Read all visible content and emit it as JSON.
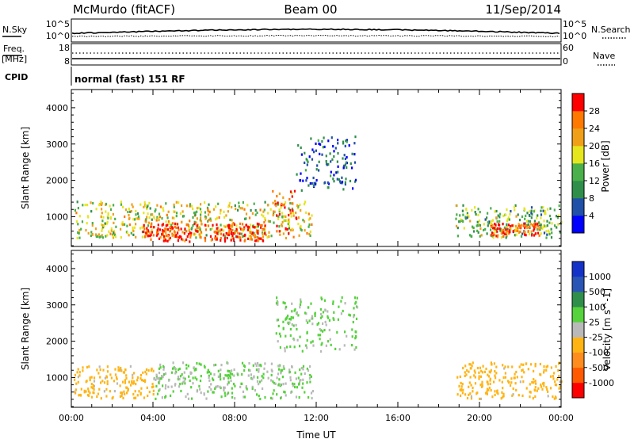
{
  "header": {
    "station": "McMurdo (fitACF)",
    "beam": "Beam 00",
    "date": "11/Sep/2014"
  },
  "left_labels": {
    "nsky": "N.Sky",
    "freq": "Freq.",
    "freq_unit": "[MHz]",
    "cpid": "CPID"
  },
  "right_labels": {
    "nsearch": "N.Search",
    "nave": "Nave"
  },
  "strip_ticks": {
    "noise_left": [
      "10^5",
      "10^0"
    ],
    "noise_right": [
      "10^5",
      "10^0"
    ],
    "freq_left": [
      "18",
      "8"
    ],
    "nave_right": [
      "60",
      "0"
    ]
  },
  "cpid_text": "normal (fast) 151 RF",
  "colors": {
    "power": [
      "#0000ff",
      "#2050a8",
      "#2f8f4a",
      "#4ab04a",
      "#e6e61e",
      "#f0a018",
      "#ff7800",
      "#ff0000"
    ],
    "velocity": [
      "#ff0000",
      "#ff5a00",
      "#ff8c1e",
      "#ffb414",
      "#b9b9b9",
      "#55d23c",
      "#2f8f4a",
      "#2a55b4",
      "#1432c8"
    ]
  },
  "chart_data": [
    {
      "type": "heatmap",
      "ylabel": "Slant Range [km]",
      "x_range": [
        "00:00",
        "24:00"
      ],
      "ylim": [
        180,
        4500
      ],
      "yticks": [
        "1000",
        "2000",
        "3000",
        "4000"
      ],
      "colorbar": {
        "label": "Power [dB]",
        "ticks": [
          "4",
          "8",
          "12",
          "16",
          "20",
          "24",
          "28"
        ],
        "range": [
          0,
          32
        ]
      },
      "regions": [
        {
          "x": [
            0.1,
            11.8
          ],
          "range": [
            400,
            1400
          ],
          "value": 18
        },
        {
          "x": [
            3.5,
            9.5
          ],
          "range": [
            300,
            800
          ],
          "value": 29
        },
        {
          "x": [
            9.8,
            11.0
          ],
          "range": [
            400,
            1700
          ],
          "value": 26
        },
        {
          "x": [
            11.0,
            14.0
          ],
          "range": [
            1700,
            3200
          ],
          "value": 6
        },
        {
          "x": [
            18.8,
            24.0
          ],
          "range": [
            400,
            1300
          ],
          "value": 14
        },
        {
          "x": [
            20.5,
            23.0
          ],
          "range": [
            450,
            800
          ],
          "value": 27
        }
      ]
    },
    {
      "type": "heatmap",
      "ylabel": "Slant Range [km]",
      "xlabel": "Time UT",
      "x_range": [
        "00:00",
        "24:00"
      ],
      "xticks": [
        "00:00",
        "04:00",
        "08:00",
        "12:00",
        "16:00",
        "20:00",
        "00:00"
      ],
      "ylim": [
        180,
        4500
      ],
      "yticks": [
        "1000",
        "2000",
        "3000",
        "4000"
      ],
      "colorbar": {
        "label": "Velocity [m s^-1]",
        "ticks": [
          "1000",
          "500",
          "100",
          "25",
          "-25",
          "-100",
          "-500",
          "-1000"
        ],
        "range": [
          -1200,
          1200
        ]
      },
      "regions": [
        {
          "x": [
            0.1,
            4.0
          ],
          "range": [
            400,
            1300
          ],
          "value": -250
        },
        {
          "x": [
            4.0,
            11.8
          ],
          "range": [
            400,
            1400
          ],
          "value": 150
        },
        {
          "x": [
            10.0,
            14.0
          ],
          "range": [
            1700,
            3200
          ],
          "value": 200
        },
        {
          "x": [
            18.8,
            24.0
          ],
          "range": [
            400,
            1400
          ],
          "value": -250
        }
      ]
    }
  ]
}
